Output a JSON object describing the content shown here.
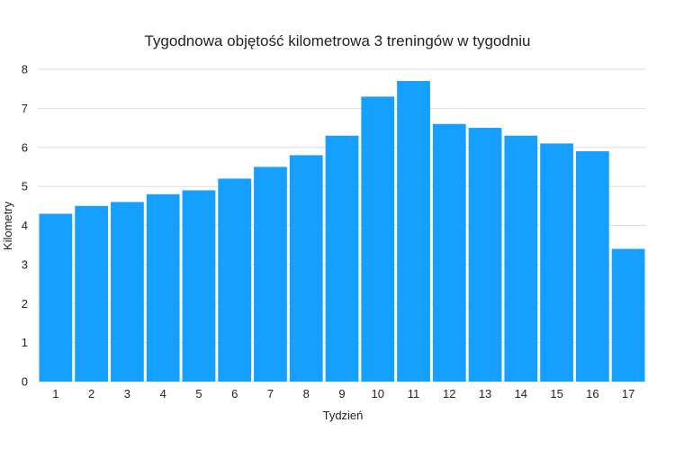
{
  "chart_data": {
    "type": "bar",
    "title": "Tygodnowa objętość kilometrowa 3 treningów w tygodniu",
    "xlabel": "Tydzień",
    "ylabel": "Kilometry",
    "categories": [
      "1",
      "2",
      "3",
      "4",
      "5",
      "6",
      "7",
      "8",
      "9",
      "10",
      "11",
      "12",
      "13",
      "14",
      "15",
      "16",
      "17"
    ],
    "values": [
      4.3,
      4.5,
      4.6,
      4.8,
      4.9,
      5.2,
      5.5,
      5.8,
      6.3,
      7.3,
      7.7,
      6.6,
      6.5,
      6.3,
      6.1,
      5.9,
      3.4
    ],
    "ylim": [
      0,
      8
    ],
    "yticks": [
      "0",
      "1",
      "2",
      "3",
      "4",
      "5",
      "6",
      "7",
      "8"
    ],
    "grid": true,
    "bar_color": "#159FFF",
    "grid_color": "#DDDDDD"
  }
}
